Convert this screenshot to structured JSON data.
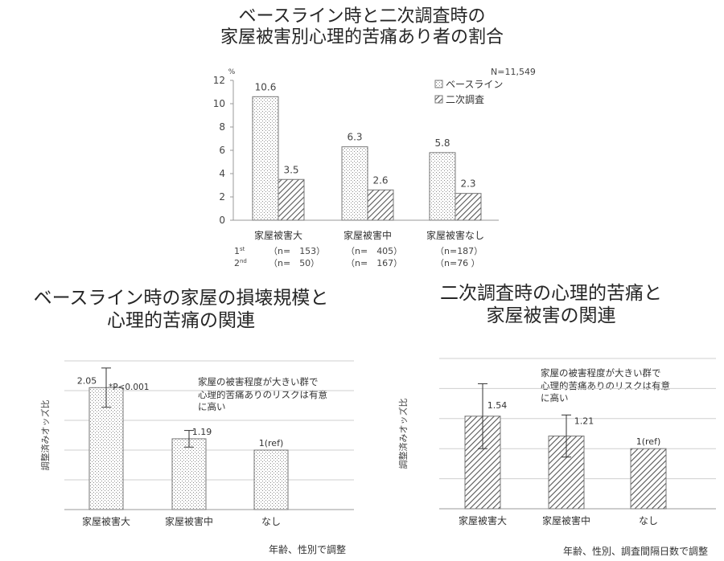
{
  "titles": {
    "top": [
      "ベースライン時と二次調査時の",
      "家屋被害別心理的苦痛あり者の割合"
    ],
    "left": [
      "ベースライン時の家屋の損壊規模と",
      "心理的苦痛の関連"
    ],
    "right": [
      "二次調査時の心理的苦痛と",
      "家屋被害の関連"
    ]
  },
  "notes": {
    "left_caption": "年齢、性別で調整",
    "right_caption": "年齢、性別、調査間隔日数で調整",
    "left_annotation": [
      "家屋の被害程度が大きい群で",
      "心理的苦痛ありのリスクは有意",
      "に高い"
    ],
    "right_annotation": [
      "家屋の被害程度が大きい群で",
      "心理的苦痛ありのリスクは有意",
      "に高い"
    ]
  },
  "chart_data": [
    {
      "type": "bar",
      "title": "ベースライン時と二次調査時の家屋被害別心理的苦痛あり者の割合",
      "categories": [
        "家屋被害大",
        "家屋被害中",
        "家屋被害なし"
      ],
      "series": [
        {
          "name": "ベースライン",
          "pattern": "dots",
          "values": [
            10.6,
            6.3,
            5.8
          ],
          "labels": [
            "10.6",
            "6.3",
            "5.8"
          ]
        },
        {
          "name": "二次調査",
          "pattern": "hatch",
          "values": [
            3.5,
            2.6,
            2.3
          ],
          "labels": [
            "3.5",
            "2.6",
            "2.3"
          ]
        }
      ],
      "ylabel": "%",
      "ylim": [
        0,
        12
      ],
      "yticks": [
        "0",
        "2",
        "4",
        "6",
        "8",
        "10",
        "12"
      ],
      "annotation": "N=11,549",
      "legend": "top-right",
      "grid": false,
      "n_rows": [
        {
          "label": "1",
          "sup": "st",
          "cells": [
            "（n=　153）",
            "（n=　405）",
            "（n=187）"
          ]
        },
        {
          "label": "2",
          "sup": "nd",
          "cells": [
            "（n=　50）",
            "（n=　167）",
            "（n=76 ）"
          ]
        }
      ]
    },
    {
      "type": "bar",
      "title": "ベースライン時の家屋の損壊規模と心理的苦痛の関連",
      "categories": [
        "家屋被害大",
        "家屋被害中",
        "なし"
      ],
      "values": [
        2.05,
        1.19,
        1.0
      ],
      "labels": [
        "2.05",
        "1.19",
        "1(ref)"
      ],
      "error_bars": [
        [
          1.72,
          2.38
        ],
        [
          1.05,
          1.33
        ],
        null
      ],
      "pattern": "dots",
      "ylabel": "調整済みオッズ比",
      "ylim": [
        0,
        2.5
      ],
      "grid": true,
      "significance": "*P<0.001"
    },
    {
      "type": "bar",
      "title": "二次調査時の心理的苦痛と家屋被害の関連",
      "categories": [
        "家屋被害大",
        "家屋被害中",
        "なし"
      ],
      "values": [
        1.54,
        1.21,
        1.0
      ],
      "labels": [
        "1.54",
        "1.21",
        "1(ref)"
      ],
      "error_bars": [
        [
          1.0,
          2.08
        ],
        [
          0.86,
          1.56
        ],
        null
      ],
      "pattern": "hatch",
      "ylabel": "調整済みオッズ比",
      "ylim": [
        0,
        2.5
      ],
      "grid": true
    }
  ]
}
